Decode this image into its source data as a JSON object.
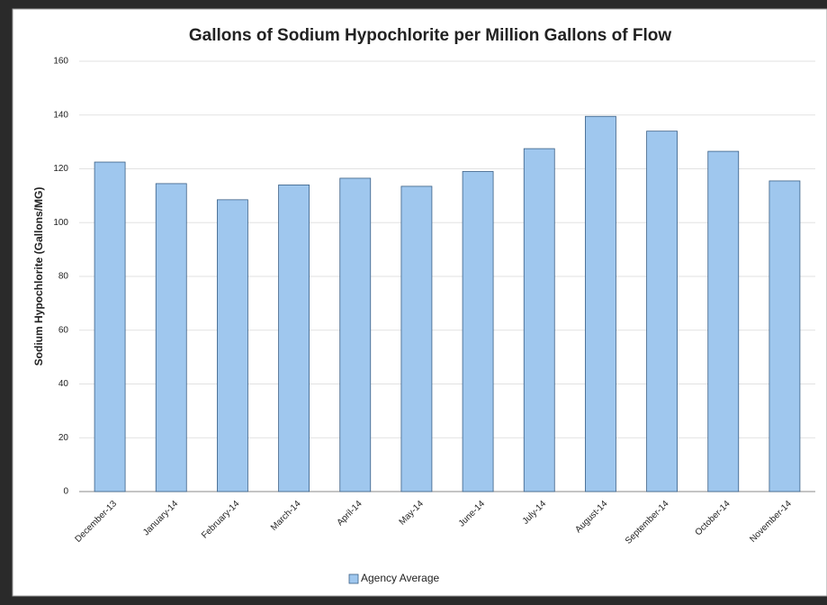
{
  "chart_data": {
    "type": "bar",
    "title": "Gallons of Sodium Hypochlorite per Million Gallons of Flow",
    "y_label": "Sodium Hypochlorite (Gallons/MG)",
    "categories": [
      "December-13",
      "January-14",
      "February-14",
      "March-14",
      "April-14",
      "May-14",
      "June-14",
      "July-14",
      "August-14",
      "September-14",
      "October-14",
      "November-14"
    ],
    "series": [
      {
        "name": "Agency Average",
        "color": "#9fc7ee",
        "values": [
          122.5,
          114.5,
          108.5,
          114,
          116.5,
          113.5,
          119,
          127.5,
          139.5,
          134,
          126.5,
          115.5
        ]
      }
    ],
    "ylim": [
      0,
      160
    ],
    "yticks": [
      0,
      20,
      40,
      60,
      80,
      100,
      120,
      140,
      160
    ],
    "grid": true,
    "legend": "bottom"
  }
}
